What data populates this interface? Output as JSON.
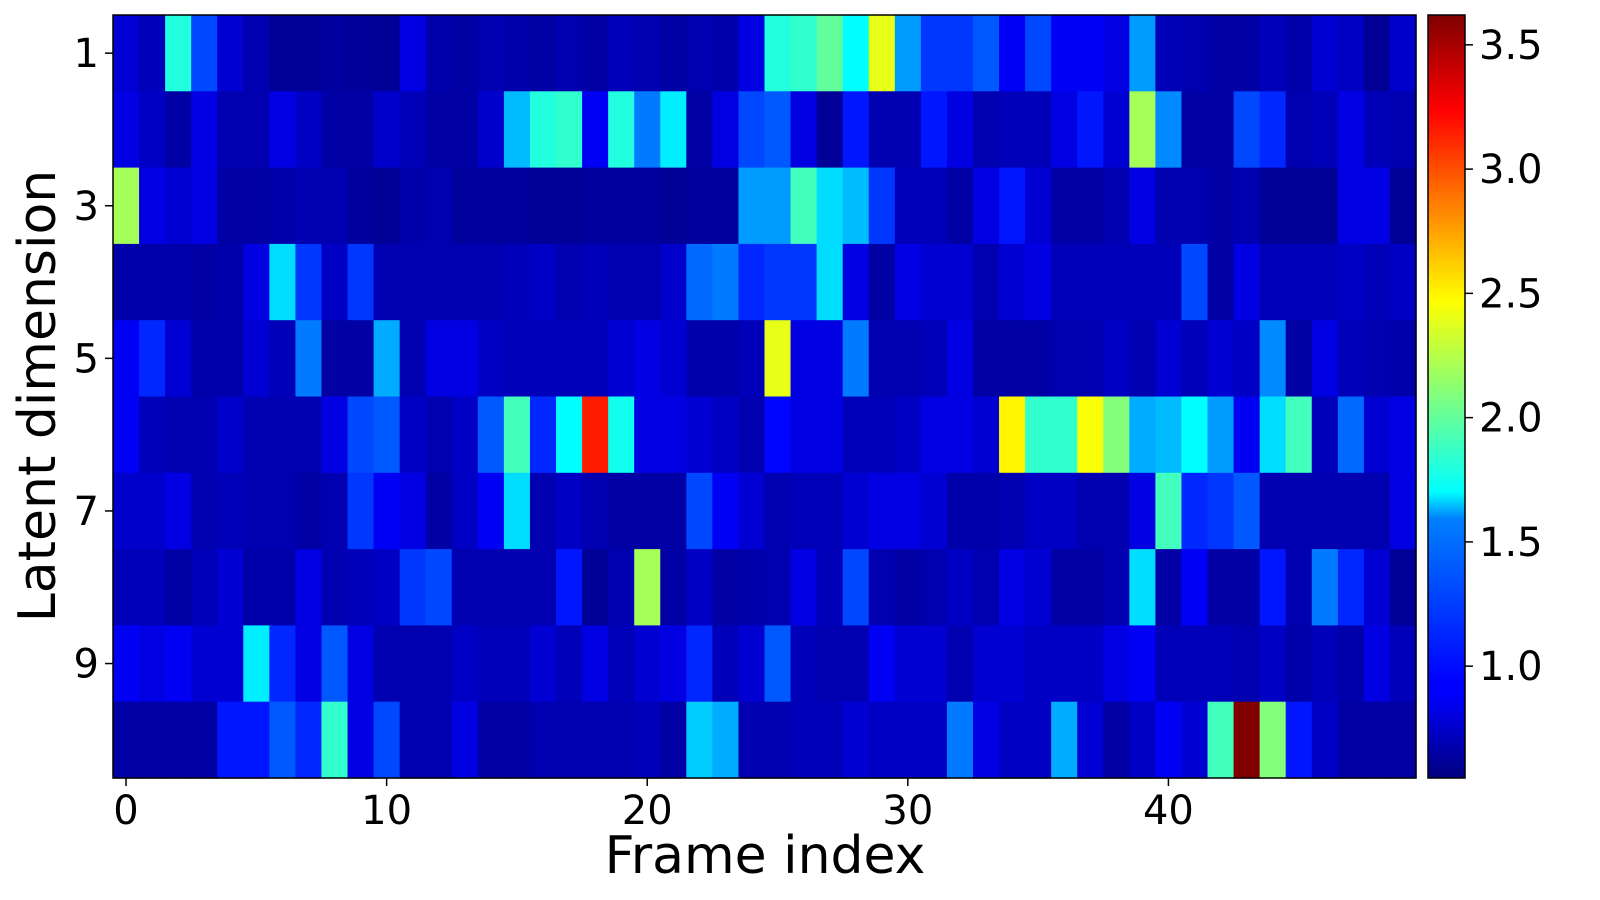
{
  "chart_data": {
    "type": "heatmap",
    "title": "",
    "xlabel": "Frame index",
    "ylabel": "Latent dimension",
    "x_tick_values": [
      0,
      10,
      20,
      30,
      40
    ],
    "x_tick_labels": [
      "0",
      "10",
      "20",
      "30",
      "40"
    ],
    "y_tick_rows": [
      0,
      2,
      4,
      6,
      8
    ],
    "y_tick_labels": [
      "1",
      "3",
      "5",
      "7",
      "9"
    ],
    "n_frames": 50,
    "n_dims": 10,
    "colormap": "jet",
    "vmin": 0.55,
    "vmax": 3.62,
    "colorbar_ticks": [
      1.0,
      1.5,
      2.0,
      2.5,
      3.0,
      3.5
    ],
    "colorbar_tick_labels": [
      "1.0",
      "1.5",
      "2.0",
      "2.5",
      "3.0",
      "3.5"
    ],
    "grid": false,
    "values": [
      [
        0.8,
        0.72,
        1.8,
        1.15,
        0.8,
        0.7,
        0.62,
        0.62,
        0.65,
        0.63,
        0.62,
        0.85,
        0.68,
        0.66,
        0.7,
        0.68,
        0.66,
        0.7,
        0.66,
        0.72,
        0.7,
        0.66,
        0.7,
        0.68,
        0.85,
        1.8,
        1.85,
        2.0,
        1.7,
        2.4,
        1.4,
        1.1,
        1.1,
        1.2,
        0.9,
        1.15,
        0.9,
        0.9,
        0.85,
        1.4,
        0.72,
        0.7,
        0.66,
        0.66,
        0.72,
        0.68,
        0.8,
        0.75,
        0.62,
        0.78
      ],
      [
        0.85,
        0.76,
        0.66,
        0.85,
        0.7,
        0.7,
        0.85,
        0.76,
        0.66,
        0.66,
        0.78,
        0.72,
        0.66,
        0.66,
        0.78,
        1.5,
        1.8,
        1.85,
        0.9,
        1.8,
        1.3,
        1.65,
        0.66,
        0.85,
        1.15,
        1.2,
        0.85,
        0.62,
        1.0,
        0.7,
        0.7,
        1.0,
        0.85,
        0.7,
        0.72,
        0.72,
        0.85,
        1.0,
        0.8,
        2.2,
        1.35,
        0.66,
        0.66,
        1.15,
        1.05,
        0.7,
        0.72,
        0.85,
        0.72,
        0.7
      ],
      [
        2.2,
        0.85,
        0.8,
        0.85,
        0.66,
        0.66,
        0.68,
        0.7,
        0.7,
        0.64,
        0.62,
        0.68,
        0.7,
        0.64,
        0.64,
        0.64,
        0.62,
        0.62,
        0.64,
        0.64,
        0.64,
        0.62,
        0.64,
        0.64,
        1.4,
        1.4,
        1.9,
        1.6,
        1.5,
        1.1,
        0.72,
        0.72,
        0.66,
        0.85,
        1.0,
        0.8,
        0.66,
        0.66,
        0.7,
        0.85,
        0.7,
        0.7,
        0.66,
        0.7,
        0.62,
        0.62,
        0.62,
        0.85,
        0.85,
        0.62
      ],
      [
        0.68,
        0.68,
        0.68,
        0.66,
        0.68,
        0.85,
        1.6,
        1.1,
        0.76,
        1.1,
        0.7,
        0.7,
        0.7,
        0.7,
        0.7,
        0.72,
        0.76,
        0.7,
        0.72,
        0.7,
        0.7,
        0.78,
        1.25,
        1.3,
        1.05,
        1.1,
        1.1,
        1.6,
        0.85,
        0.66,
        0.85,
        0.8,
        0.8,
        0.7,
        0.8,
        0.85,
        0.72,
        0.72,
        0.72,
        0.72,
        0.72,
        1.15,
        0.66,
        0.85,
        0.72,
        0.72,
        0.72,
        0.76,
        0.72,
        0.76
      ],
      [
        0.9,
        1.05,
        0.8,
        0.68,
        0.68,
        0.8,
        0.72,
        1.3,
        0.66,
        0.66,
        1.45,
        0.7,
        0.85,
        0.85,
        0.76,
        0.72,
        0.72,
        0.72,
        0.72,
        0.8,
        0.85,
        0.8,
        0.68,
        0.68,
        0.72,
        2.4,
        0.85,
        0.85,
        1.3,
        0.7,
        0.7,
        0.72,
        0.85,
        0.66,
        0.66,
        0.66,
        0.7,
        0.7,
        0.76,
        0.7,
        0.8,
        0.72,
        0.8,
        0.76,
        1.35,
        0.66,
        0.85,
        0.72,
        0.7,
        0.68
      ],
      [
        0.9,
        0.72,
        0.7,
        0.7,
        0.78,
        0.7,
        0.7,
        0.7,
        0.85,
        1.15,
        1.2,
        0.76,
        0.7,
        0.76,
        1.2,
        1.9,
        1.05,
        1.7,
        3.15,
        1.75,
        0.85,
        0.85,
        0.8,
        0.76,
        0.7,
        0.95,
        0.85,
        0.85,
        0.72,
        0.72,
        0.76,
        0.85,
        0.85,
        0.8,
        2.5,
        1.85,
        1.85,
        2.45,
        2.1,
        1.45,
        1.5,
        1.7,
        1.4,
        0.9,
        1.6,
        1.9,
        0.72,
        1.25,
        0.8,
        0.85
      ],
      [
        0.78,
        0.78,
        0.85,
        0.7,
        0.72,
        0.7,
        0.7,
        0.66,
        0.7,
        1.1,
        0.9,
        0.85,
        0.66,
        0.76,
        0.9,
        1.6,
        0.7,
        0.76,
        0.7,
        0.66,
        0.66,
        0.66,
        1.15,
        0.9,
        0.8,
        0.7,
        0.72,
        0.72,
        0.8,
        0.85,
        0.85,
        0.8,
        0.68,
        0.68,
        0.7,
        0.76,
        0.76,
        0.7,
        0.7,
        0.85,
        1.9,
        1.05,
        1.1,
        1.2,
        0.7,
        0.7,
        0.7,
        0.7,
        0.7,
        0.85
      ],
      [
        0.72,
        0.72,
        0.66,
        0.72,
        0.8,
        0.68,
        0.68,
        0.85,
        0.7,
        0.72,
        0.76,
        1.1,
        1.15,
        0.7,
        0.7,
        0.7,
        0.7,
        1.0,
        0.62,
        0.7,
        2.2,
        0.66,
        0.76,
        0.66,
        0.68,
        0.7,
        0.85,
        0.72,
        1.15,
        0.7,
        0.66,
        0.7,
        0.76,
        0.7,
        0.85,
        0.8,
        0.66,
        0.66,
        0.7,
        1.6,
        0.66,
        0.9,
        0.66,
        0.66,
        1.0,
        0.7,
        1.3,
        1.05,
        0.8,
        0.62
      ],
      [
        0.9,
        0.85,
        0.9,
        0.8,
        0.8,
        1.65,
        1.05,
        0.85,
        1.2,
        0.85,
        0.7,
        0.7,
        0.7,
        0.76,
        0.72,
        0.72,
        0.8,
        0.72,
        0.85,
        0.72,
        0.8,
        0.85,
        1.05,
        0.72,
        0.8,
        1.2,
        0.72,
        0.7,
        0.7,
        0.9,
        0.8,
        0.8,
        0.7,
        0.8,
        0.8,
        0.76,
        0.76,
        0.76,
        0.85,
        0.9,
        0.72,
        0.72,
        0.72,
        0.7,
        0.76,
        0.68,
        0.72,
        0.68,
        0.85,
        0.72
      ],
      [
        0.66,
        0.66,
        0.66,
        0.66,
        1.0,
        1.0,
        1.2,
        1.05,
        1.85,
        0.85,
        1.15,
        0.7,
        0.7,
        0.85,
        0.66,
        0.66,
        0.7,
        0.7,
        0.7,
        0.7,
        0.72,
        0.66,
        1.55,
        1.45,
        0.7,
        0.7,
        0.72,
        0.72,
        0.8,
        0.76,
        0.76,
        0.76,
        1.3,
        0.85,
        0.76,
        0.76,
        1.45,
        0.8,
        0.66,
        0.76,
        0.9,
        0.8,
        1.9,
        3.62,
        2.1,
        1.0,
        0.76,
        0.66,
        0.66,
        0.66
      ]
    ]
  }
}
